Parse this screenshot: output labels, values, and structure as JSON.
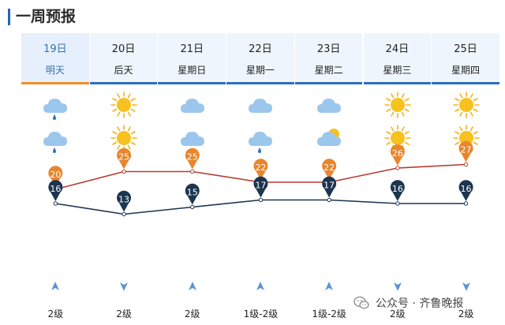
{
  "title": "一周预报",
  "colors": {
    "accent": "#1f66b8",
    "today_underline": "#ef8c2c",
    "high_line": "#b73a2e",
    "low_line": "#1b3550",
    "high_marker": "#e8862e",
    "low_marker": "#1c3550"
  },
  "days": [
    {
      "date": "19日",
      "label": "明天",
      "icon_top": "rain-cloud-icon",
      "icon_bottom": "rain-cloud-icon",
      "wind_dir": "up",
      "wind_level": "2级"
    },
    {
      "date": "20日",
      "label": "后天",
      "icon_top": "sun-icon",
      "icon_bottom": "sun-icon",
      "wind_dir": "down",
      "wind_level": "2级"
    },
    {
      "date": "21日",
      "label": "星期日",
      "icon_top": "cloud-icon",
      "icon_bottom": "cloud-icon",
      "wind_dir": "up",
      "wind_level": "2级"
    },
    {
      "date": "22日",
      "label": "星期一",
      "icon_top": "cloud-icon",
      "icon_bottom": "rain-cloud-icon",
      "wind_dir": "up",
      "wind_level": "1级-2级"
    },
    {
      "date": "23日",
      "label": "星期二",
      "icon_top": "cloud-icon",
      "icon_bottom": "partly-cloudy-icon",
      "wind_dir": "up",
      "wind_level": "1级-2级"
    },
    {
      "date": "24日",
      "label": "星期三",
      "icon_top": "sun-icon",
      "icon_bottom": "sun-icon",
      "wind_dir": "down",
      "wind_level": "2级"
    },
    {
      "date": "25日",
      "label": "星期四",
      "icon_top": "sun-icon",
      "icon_bottom": "sun-icon",
      "wind_dir": "down",
      "wind_level": "2级"
    }
  ],
  "chart_data": {
    "type": "line",
    "categories": [
      "19日",
      "20日",
      "21日",
      "22日",
      "23日",
      "24日",
      "25日"
    ],
    "series": [
      {
        "values": [
          20,
          25,
          25,
          22,
          22,
          26,
          27
        ]
      },
      {
        "values": [
          16,
          13,
          15,
          17,
          17,
          16,
          16
        ]
      }
    ],
    "ylim": [
      10,
      30
    ],
    "grid": false
  },
  "watermark": {
    "text": "公众号 · 齐鲁晚报"
  }
}
